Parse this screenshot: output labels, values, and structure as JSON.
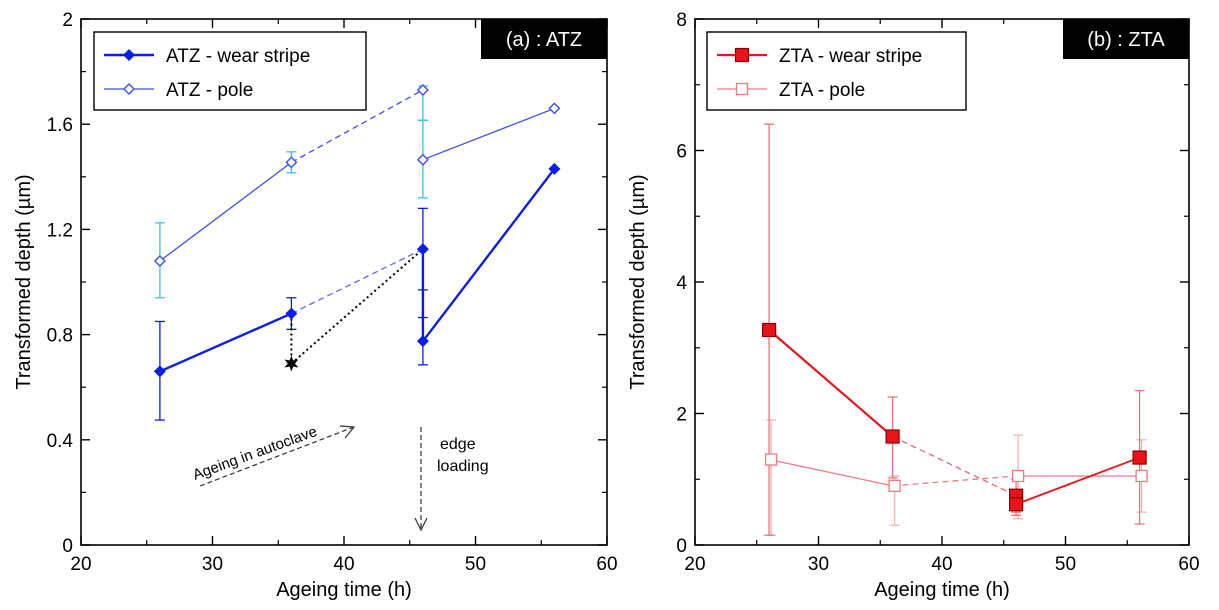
{
  "chart_data": [
    {
      "type": "line",
      "panel_label": "(a) : ATZ",
      "xlabel": "Ageing time (h)",
      "ylabel": "Transformed depth (µm)",
      "xlim": [
        20,
        60
      ],
      "ylim": [
        0,
        2
      ],
      "xticks": [
        20,
        30,
        40,
        50,
        60
      ],
      "yticks": [
        0,
        0.4,
        0.8,
        1.2,
        1.6,
        2
      ],
      "ytick_labels": [
        "0",
        "0.4",
        "0.8",
        "1.2",
        "1.6",
        "2"
      ],
      "grid": false,
      "legend_position": "top-left",
      "series": [
        {
          "name": "ATZ - wear stripe",
          "color": "#0a1ee6",
          "marker": "filled-diamond",
          "points": [
            {
              "x": 26,
              "y": 0.66,
              "err_low": 0.475,
              "err_high": 0.85
            },
            {
              "x": 36,
              "y": 0.88,
              "err_low": 0.82,
              "err_high": 0.94
            },
            {
              "x": 46,
              "y": 1.125,
              "err_low": 0.97,
              "err_high": 1.28
            },
            {
              "x": 46,
              "y": 0.775,
              "err_low": 0.685,
              "err_high": 0.865
            },
            {
              "x": 56,
              "y": 1.43
            }
          ]
        },
        {
          "name": "ATZ - pole",
          "color": "#3b4ff0",
          "marker": "open-diamond",
          "points": [
            {
              "x": 26,
              "y": 1.08,
              "err_low": 0.94,
              "err_high": 1.225
            },
            {
              "x": 36,
              "y": 1.455,
              "err_low": 1.415,
              "err_high": 1.495
            },
            {
              "x": 46,
              "y": 1.73,
              "err_low": 1.615,
              "err_high": 1.745
            },
            {
              "x": 46,
              "y": 1.465,
              "err_low": 1.32,
              "err_high": 1.615
            },
            {
              "x": 56,
              "y": 1.66
            }
          ]
        },
        {
          "name": "star marker",
          "color": "#000000",
          "marker": "star",
          "points": [
            {
              "x": 36,
              "y": 0.69
            }
          ]
        }
      ],
      "annotations": [
        {
          "text": "Ageing in autoclave",
          "arrow": "dashed, pointing up-right"
        },
        {
          "text": "edge loading",
          "arrow": "dashed, pointing down"
        }
      ]
    },
    {
      "type": "line",
      "panel_label": "(b) : ZTA",
      "xlabel": "Ageing time (h)",
      "ylabel": "Transformed depth (µm)",
      "xlim": [
        20,
        60
      ],
      "ylim": [
        0,
        8
      ],
      "xticks": [
        20,
        30,
        40,
        50,
        60
      ],
      "yticks": [
        0,
        2,
        4,
        6,
        8
      ],
      "ytick_labels": [
        "0",
        "2",
        "4",
        "6",
        "8"
      ],
      "grid": false,
      "legend_position": "top-left",
      "series": [
        {
          "name": "ZTA - wear stripe",
          "color": "#e8141a",
          "marker": "filled-square",
          "points": [
            {
              "x": 26,
              "y": 3.27,
              "err_low": 0.15,
              "err_high": 6.4
            },
            {
              "x": 36,
              "y": 1.65,
              "err_low": 1.02,
              "err_high": 2.25
            },
            {
              "x": 46,
              "y": 0.75,
              "err_low": 0.5,
              "err_high": 1.0
            },
            {
              "x": 46,
              "y": 0.62,
              "err_low": 0.45,
              "err_high": 0.8
            },
            {
              "x": 56,
              "y": 1.33,
              "err_low": 0.32,
              "err_high": 2.35
            }
          ]
        },
        {
          "name": "ZTA - pole",
          "color": "#f07a7e",
          "marker": "open-square",
          "points": [
            {
              "x": 26,
              "y": 1.3,
              "err_low": 0.15,
              "err_high": 1.9
            },
            {
              "x": 36,
              "y": 0.9,
              "err_low": 0.3,
              "err_high": 1.05
            },
            {
              "x": 46,
              "y": 1.05,
              "err_low": 0.4,
              "err_high": 1.67
            },
            {
              "x": 56,
              "y": 1.05,
              "err_low": 0.5,
              "err_high": 1.6
            }
          ]
        }
      ]
    }
  ]
}
